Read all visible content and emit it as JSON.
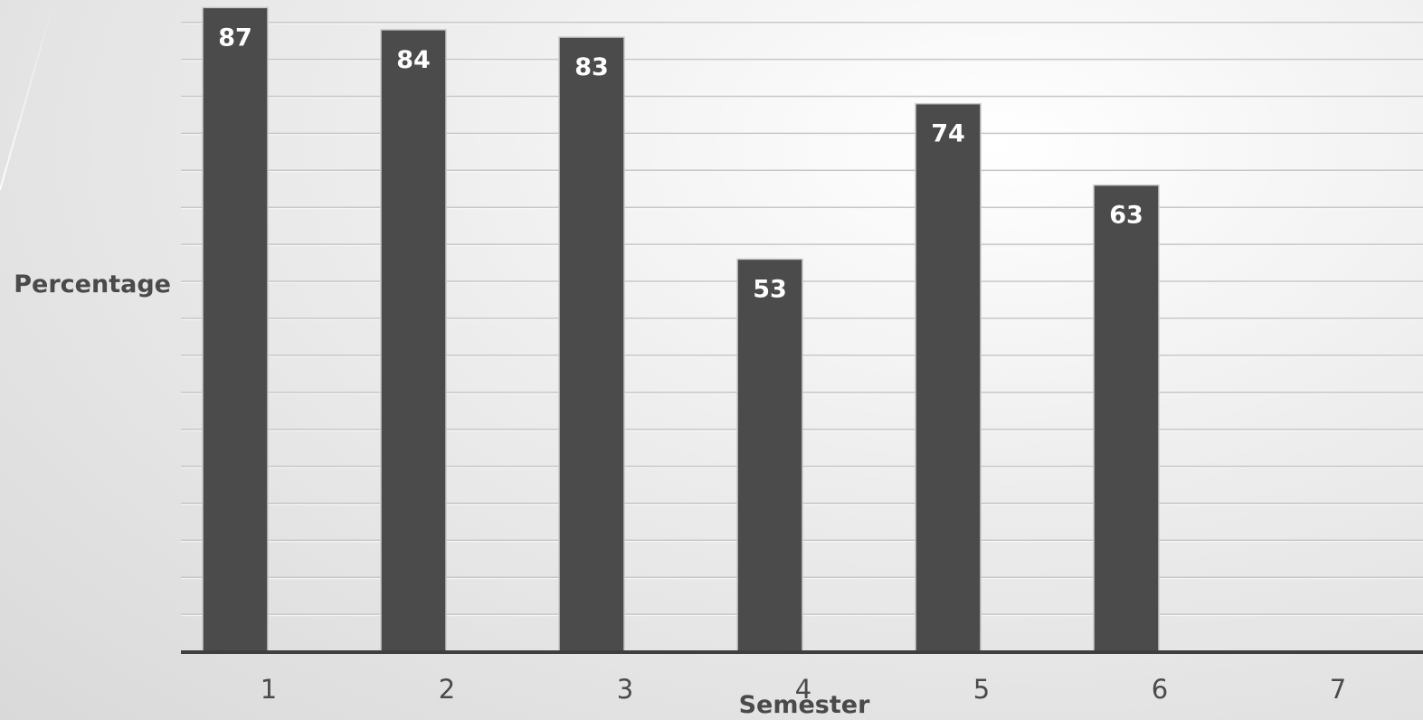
{
  "chart_data": {
    "type": "bar",
    "categories": [
      "1",
      "2",
      "3",
      "4",
      "5",
      "6",
      "7"
    ],
    "values": [
      87,
      84,
      83,
      53,
      74,
      63,
      null
    ],
    "data_labels": [
      "87",
      "84",
      "83",
      "53",
      "74",
      "63",
      ""
    ],
    "xlabel": "Semester",
    "ylabel": "Percentage",
    "ylim": [
      0,
      87.5
    ],
    "gridline_step": 5,
    "grid": true,
    "y_tick_labels_visible": false,
    "colors": {
      "bar": "#4b4b4b",
      "label": "#ffffff",
      "axis": "#3f3f3f"
    }
  }
}
